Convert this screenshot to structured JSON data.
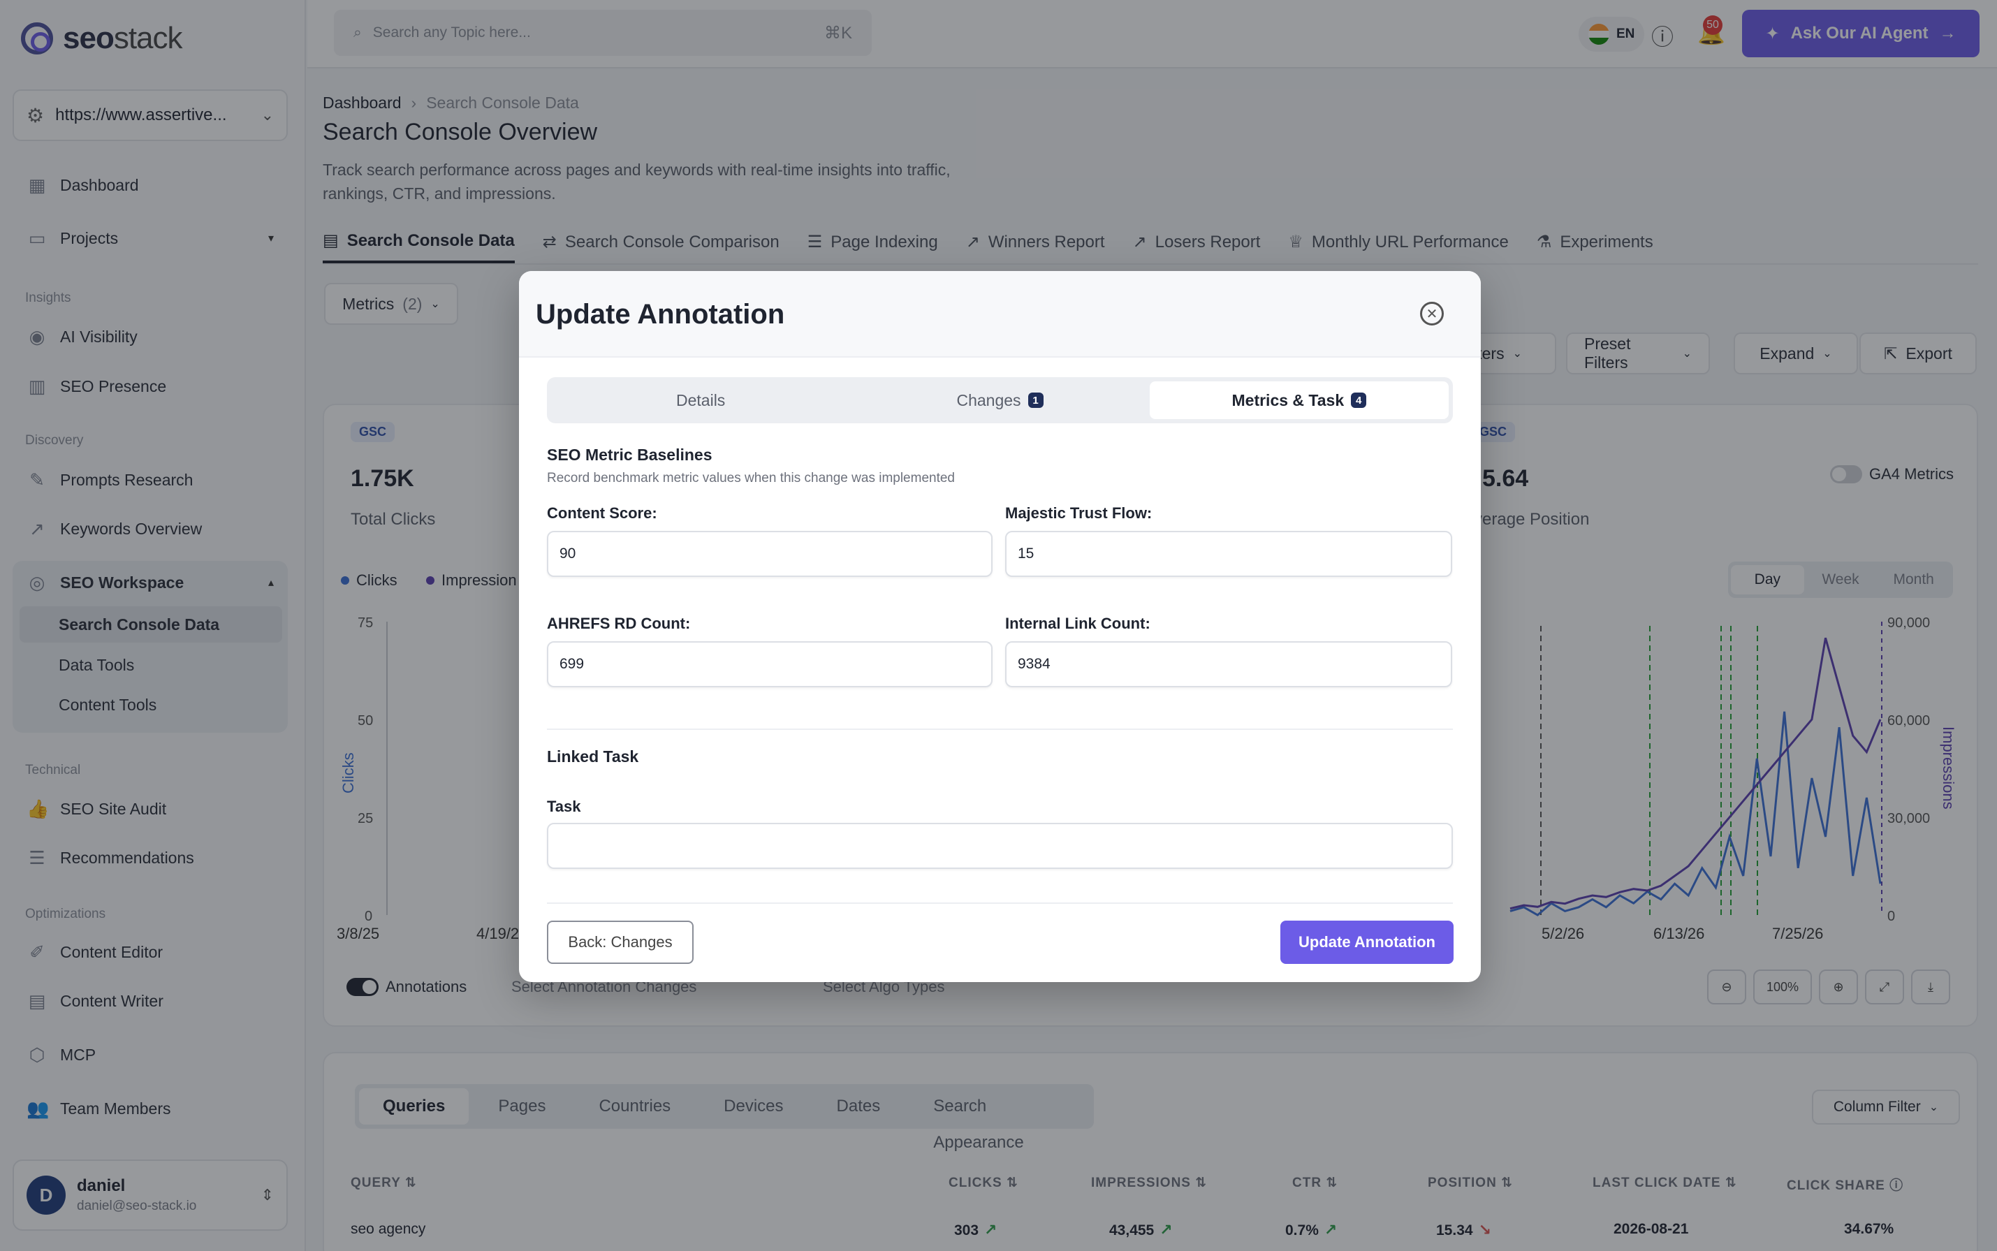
{
  "app": {
    "logo_bold": "seo",
    "logo_rest": "stack"
  },
  "sidebar": {
    "site": "https://www.assertive...",
    "items": {
      "dashboard": "Dashboard",
      "projects": "Projects",
      "ai_visibility": "AI Visibility",
      "seo_presence": "SEO Presence",
      "prompts_research": "Prompts Research",
      "keywords_overview": "Keywords Overview",
      "seo_workspace": "SEO Workspace",
      "search_console_data": "Search Console Data",
      "data_tools": "Data Tools",
      "content_tools": "Content Tools",
      "seo_site_audit": "SEO Site Audit",
      "recommendations": "Recommendations",
      "content_editor": "Content Editor",
      "content_writer": "Content Writer",
      "mcp": "MCP",
      "team_members": "Team Members"
    },
    "sections": {
      "insights": "Insights",
      "discovery": "Discovery",
      "technical": "Technical",
      "optimizations": "Optimizations"
    },
    "user": {
      "initial": "D",
      "name": "daniel",
      "email": "daniel@seo-stack.io"
    }
  },
  "topbar": {
    "search_placeholder": "Search any Topic here...",
    "shortcut": "⌘K",
    "language": "EN",
    "notifications": "50",
    "ai_button": "Ask Our AI Agent"
  },
  "breadcrumb": {
    "root": "Dashboard",
    "current": "Search Console Data"
  },
  "page": {
    "title": "Search Console Overview",
    "description": "Track search performance across pages and keywords with real-time insights into traffic, rankings, CTR, and impressions."
  },
  "tabs": [
    "Search Console Data",
    "Search Console Comparison",
    "Page Indexing",
    "Winners Report",
    "Losers Report",
    "Monthly URL Performance",
    "Experiments"
  ],
  "filters": {
    "metrics": "Metrics",
    "metrics_count": "(2)",
    "filters_partial": "ilters",
    "preset": "Preset Filters",
    "expand": "Expand",
    "export": "Export"
  },
  "cards": {
    "tag": "GSC",
    "clicks_value": "1.75K",
    "clicks_label": "Total Clicks",
    "position_value": "5.64",
    "position_label": "verage Position",
    "ga4": "GA4 Metrics"
  },
  "chart": {
    "legend_clicks": "Clicks",
    "legend_impressions": "Impression",
    "granularity": [
      "Day",
      "Week",
      "Month"
    ],
    "ylabel_left": "Clicks",
    "ylabel_right": "Impressions",
    "left_ticks": [
      "75",
      "50",
      "25",
      "0"
    ],
    "right_ticks": [
      "90,000",
      "60,000",
      "30,000",
      "0"
    ],
    "x_ticks_left": [
      "3/8/25",
      "4/19/2"
    ],
    "x_ticks_right": [
      "5/2/26",
      "6/13/26",
      "7/25/26"
    ],
    "annotations_label": "Annotations",
    "annotation_changes": "Select Annotation Changes",
    "algo_types": "Select Algo Types",
    "zoom": "100%",
    "colors": {
      "clicks": "#3b6fd6",
      "impressions": "#5a3fb0"
    }
  },
  "chart_data": {
    "type": "line",
    "x_range_visible": [
      "5/2/26",
      "7/25/26"
    ],
    "series": [
      {
        "name": "Clicks",
        "values": [
          1,
          2,
          0,
          3,
          1,
          2,
          4,
          2,
          5,
          3,
          6,
          4,
          8,
          5,
          12,
          7,
          20,
          10,
          40,
          15,
          52,
          12,
          35,
          20,
          48,
          10,
          30,
          8
        ]
      },
      {
        "name": "Impressions",
        "values": [
          2000,
          3000,
          2500,
          4000,
          3500,
          5000,
          6000,
          5500,
          7000,
          8000,
          7500,
          9000,
          12000,
          15000,
          20000,
          25000,
          30000,
          35000,
          40000,
          45000,
          50000,
          55000,
          60000,
          85000,
          70000,
          55000,
          50000,
          60000
        ]
      }
    ],
    "y_left": [
      0,
      75
    ],
    "y_right": [
      0,
      90000
    ]
  },
  "table": {
    "tabs": [
      "Queries",
      "Pages",
      "Countries",
      "Devices",
      "Dates",
      "Search Appearance"
    ],
    "column_filter": "Column Filter",
    "headers": [
      "QUERY",
      "CLICKS",
      "IMPRESSIONS",
      "CTR",
      "POSITION",
      "LAST CLICK DATE",
      "CLICK SHARE"
    ],
    "row": [
      "seo agency",
      "303",
      "43,455",
      "0.7%",
      "15.34",
      "2026-08-21",
      "34.67%"
    ]
  },
  "modal": {
    "title": "Update Annotation",
    "tabs": [
      {
        "label": "Details"
      },
      {
        "label": "Changes",
        "count": "1"
      },
      {
        "label": "Metrics & Task",
        "count": "4"
      }
    ],
    "section_title": "SEO Metric Baselines",
    "section_sub": "Record benchmark metric values when this change was implemented",
    "fields": {
      "content_score_label": "Content Score:",
      "content_score": "90",
      "trust_flow_label": "Majestic Trust Flow:",
      "trust_flow": "15",
      "ahrefs_label": "AHREFS RD Count:",
      "ahrefs": "699",
      "internal_label": "Internal Link Count:",
      "internal": "9384"
    },
    "linked_task": "Linked Task",
    "task_label": "Task",
    "task_value": "",
    "back_button": "Back: Changes",
    "submit_button": "Update Annotation"
  }
}
